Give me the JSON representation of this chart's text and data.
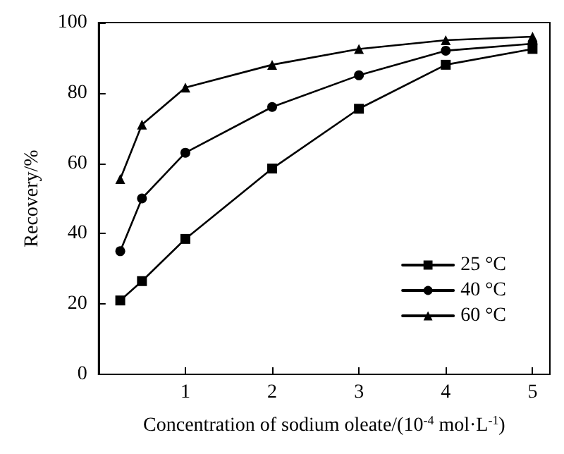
{
  "chart_data": {
    "type": "line",
    "xlabel": "Concentration of sodium oleate/(10$^{-4}$ mol·L$^{-1}$)",
    "ylabel": "Recovery/%",
    "x": [
      0.25,
      0.5,
      1,
      2,
      3,
      4,
      5
    ],
    "series": [
      {
        "name": "25 °C",
        "color": "#000000",
        "marker": "square",
        "values": [
          21,
          26.5,
          38.5,
          58.5,
          75.5,
          88,
          92.5
        ]
      },
      {
        "name": "40 °C",
        "color": "#000000",
        "marker": "circle",
        "values": [
          35,
          50,
          63,
          76,
          85,
          92,
          94
        ]
      },
      {
        "name": "60 °C",
        "color": "#000000",
        "marker": "triangle",
        "values": [
          55.5,
          71,
          81.5,
          88,
          92.5,
          95,
          96
        ]
      }
    ],
    "xlim": [
      0,
      5.2
    ],
    "xticks": [
      1,
      2,
      3,
      4,
      5
    ],
    "ylim": [
      0,
      100
    ],
    "yticks": [
      0,
      20,
      40,
      60,
      80,
      100
    ],
    "grid": false,
    "legend": "bottom right",
    "line_style": "solid"
  }
}
